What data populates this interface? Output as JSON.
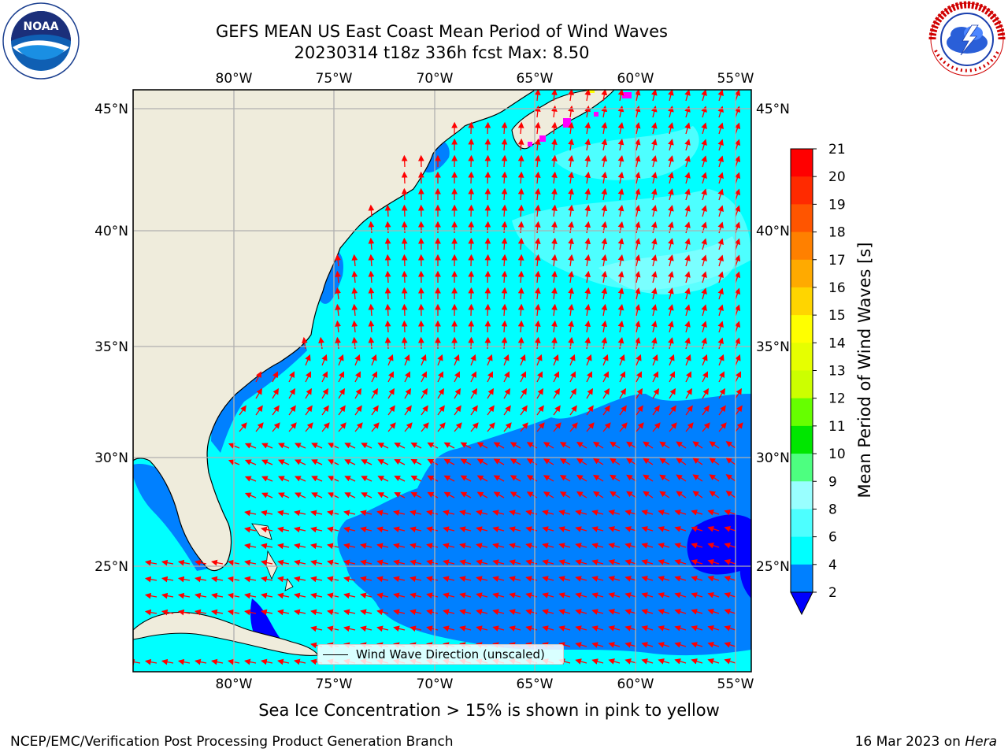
{
  "header": {
    "title_line1": "GEFS MEAN US East Coast Mean Period of Wind Waves",
    "title_line2": "20230314 t18z 336h fcst   Max: 8.50"
  },
  "logos": {
    "left": {
      "name": "noaa-logo",
      "text": "NOAA",
      "ring_text": "NATIONAL OCEANIC AND ATMOSPHERIC ADMINISTRATION · U.S. DEPARTMENT OF COMMERCE"
    },
    "right": {
      "name": "nws-logo",
      "ring_text": "NATIONAL WEATHER SERVICE"
    }
  },
  "map": {
    "lon_ticks": [
      "80°W",
      "75°W",
      "70°W",
      "65°W",
      "60°W",
      "55°W"
    ],
    "lat_ticks": [
      "45°N",
      "40°N",
      "35°N",
      "30°N",
      "25°N"
    ],
    "lon_range": [
      -85,
      -54.3
    ],
    "lat_range": [
      20.3,
      46
    ],
    "land_color": "#efecdc",
    "ocean_colors": {
      "2-4": "#0080ff",
      "4-6": "#00ffff",
      "6-8": "#4dffff"
    },
    "arrow_color": "#ff0000",
    "ice_color": "#ff00ff",
    "grid": true
  },
  "legend": {
    "label": "Wind Wave Direction (unscaled)"
  },
  "colorbar": {
    "label": "Mean Period of Wind Waves [s]",
    "ticks": [
      "21",
      "20",
      "19",
      "18",
      "17",
      "16",
      "15",
      "14",
      "13",
      "12",
      "11",
      "10",
      "9",
      "8",
      "6",
      "4",
      "2"
    ],
    "levels": [
      {
        "range": "20-21",
        "color": "#ff0000"
      },
      {
        "range": "19-20",
        "color": "#ff2a00"
      },
      {
        "range": "18-19",
        "color": "#ff5500"
      },
      {
        "range": "17-18",
        "color": "#ff8000"
      },
      {
        "range": "16-17",
        "color": "#ffaa00"
      },
      {
        "range": "15-16",
        "color": "#ffd500"
      },
      {
        "range": "14-15",
        "color": "#ffff00"
      },
      {
        "range": "13-14",
        "color": "#e6ff00"
      },
      {
        "range": "12-13",
        "color": "#ccff00"
      },
      {
        "range": "11-12",
        "color": "#66ff00"
      },
      {
        "range": "10-11",
        "color": "#00e600"
      },
      {
        "range": "9-10",
        "color": "#4dff80"
      },
      {
        "range": "8-9",
        "color": "#99ffff"
      },
      {
        "range": "6-8",
        "color": "#4dffff"
      },
      {
        "range": "4-6",
        "color": "#00ffff"
      },
      {
        "range": "2-4",
        "color": "#0080ff"
      },
      {
        "range": "<2",
        "color": "#0000ff"
      }
    ]
  },
  "subtitle": "Sea Ice Concentration > 15% is shown in pink to yellow",
  "footer": {
    "left": "NCEP/EMC/Verification Post Processing Product Generation Branch",
    "right_date": "16 Mar 2023 on",
    "right_host": "Hera"
  }
}
